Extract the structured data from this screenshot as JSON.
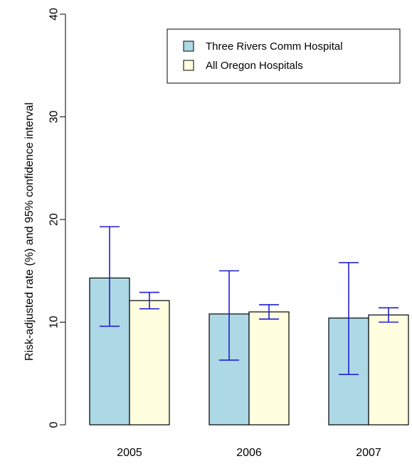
{
  "chart_data": {
    "type": "bar",
    "categories": [
      "2005",
      "2006",
      "2007"
    ],
    "series": [
      {
        "name": "Three Rivers Comm Hospital",
        "color": "#add8e6",
        "values": [
          14.3,
          10.8,
          10.4
        ],
        "ci_low": [
          9.6,
          6.3,
          4.9
        ],
        "ci_high": [
          19.3,
          15.0,
          15.8
        ]
      },
      {
        "name": "All Oregon Hospitals",
        "color": "#ffffe0",
        "values": [
          12.1,
          11.0,
          10.7
        ],
        "ci_low": [
          11.3,
          10.3,
          10.0
        ],
        "ci_high": [
          12.9,
          11.7,
          11.4
        ]
      }
    ],
    "title": "",
    "xlabel": "",
    "ylabel": "Risk-adjusted rate (%) and 95% confidence interval",
    "ylim": [
      0,
      40
    ],
    "yticks": [
      0,
      10,
      20,
      30,
      40
    ],
    "error_bar_color": "#1f1fd0",
    "grid": false,
    "legend_position": "top-right"
  }
}
